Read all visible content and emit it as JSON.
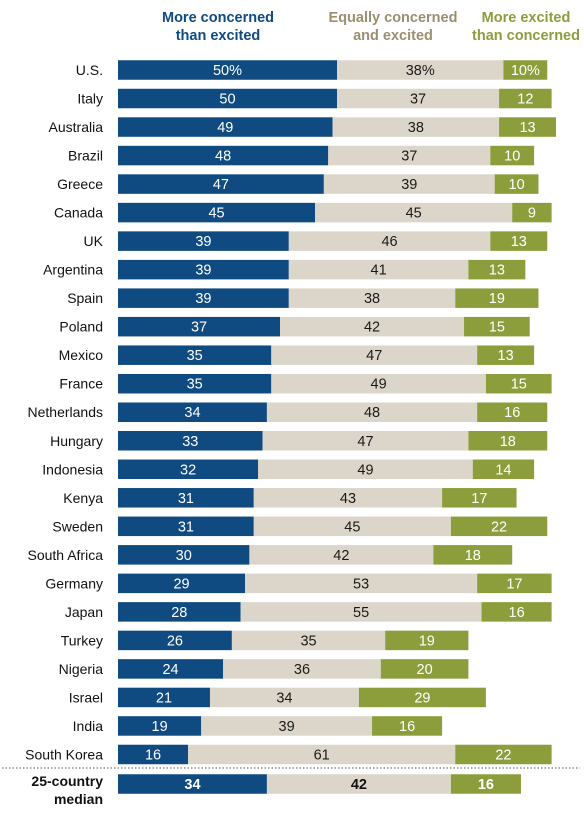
{
  "chart_data": {
    "type": "bar",
    "stacked": true,
    "orientation": "horizontal",
    "categories": [
      "U.S.",
      "Italy",
      "Australia",
      "Brazil",
      "Greece",
      "Canada",
      "UK",
      "Argentina",
      "Spain",
      "Poland",
      "Mexico",
      "France",
      "Netherlands",
      "Hungary",
      "Indonesia",
      "Kenya",
      "Sweden",
      "South Africa",
      "Germany",
      "Japan",
      "Turkey",
      "Nigeria",
      "Israel",
      "India",
      "South Korea"
    ],
    "series": [
      {
        "name": "More concerned than excited",
        "header_lines": [
          "More concerned",
          "than excited"
        ],
        "color": "#0f4a80",
        "label_color": "#ffffff",
        "header_color": "#0f4a80",
        "values": [
          50,
          50,
          49,
          48,
          47,
          45,
          39,
          39,
          39,
          37,
          35,
          35,
          34,
          33,
          32,
          31,
          31,
          30,
          29,
          28,
          26,
          24,
          21,
          19,
          16
        ]
      },
      {
        "name": "Equally concerned and excited",
        "header_lines": [
          "Equally concerned",
          "and excited"
        ],
        "color": "#dbd6c9",
        "label_color": "#1a1a1a",
        "header_color": "#9a9070",
        "values": [
          38,
          37,
          38,
          37,
          39,
          45,
          46,
          41,
          38,
          42,
          47,
          49,
          48,
          47,
          49,
          43,
          45,
          42,
          53,
          55,
          35,
          36,
          34,
          39,
          61
        ]
      },
      {
        "name": "More excited than concerned",
        "header_lines": [
          "More excited",
          "than concerned"
        ],
        "color": "#8c9e3c",
        "label_color": "#ffffff",
        "header_color": "#8c9e3c",
        "values": [
          10,
          12,
          13,
          10,
          10,
          9,
          13,
          13,
          19,
          15,
          13,
          15,
          16,
          18,
          14,
          17,
          22,
          18,
          17,
          16,
          19,
          20,
          29,
          16,
          22
        ]
      }
    ],
    "first_row_labels": [
      "50%",
      "38%",
      "10%"
    ],
    "median": {
      "label_lines": [
        "25-country",
        "median"
      ],
      "values": [
        34,
        42,
        16
      ]
    }
  }
}
